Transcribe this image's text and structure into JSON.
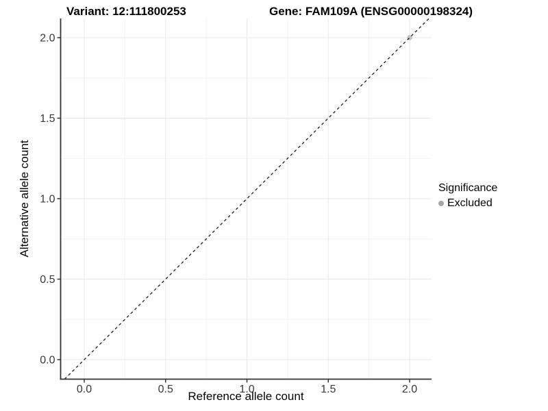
{
  "chart_data": {
    "type": "scatter",
    "title_left": "Variant: 12:111800253",
    "title_right": "Gene: FAM109A (ENSG00000198324)",
    "xlabel": "Reference allele count",
    "ylabel": "Alternative allele count",
    "x_ticks": [
      0.0,
      0.5,
      1.0,
      1.5,
      2.0
    ],
    "y_ticks": [
      0.0,
      0.5,
      1.0,
      1.5,
      2.0
    ],
    "x_tick_labels": [
      "0.0",
      "0.5",
      "1.0",
      "1.5",
      "2.0"
    ],
    "y_tick_labels": [
      "0.0",
      "0.5",
      "1.0",
      "1.5",
      "2.0"
    ],
    "xlim": [
      -0.15,
      2.13
    ],
    "ylim": [
      -0.12,
      2.12
    ],
    "grid": "major-and-minor",
    "minor_grid_step": 0.25,
    "identity_line": {
      "slope": 1,
      "intercept": 0,
      "style": "dashed"
    },
    "points": [
      {
        "x": 2.0,
        "y": 2.0,
        "series": "Excluded"
      }
    ],
    "legend": {
      "title": "Significance",
      "position": "right",
      "items": [
        {
          "label": "Excluded",
          "color": "#a6a6a6"
        }
      ]
    },
    "colors": {
      "point_fill": "#c4c4c4",
      "dashed_line": "#1a1a1a",
      "grid_major": "#e7e7e7",
      "grid_minor": "#f3f3f3",
      "axis_line": "#333333",
      "tick_label": "#383838"
    }
  }
}
